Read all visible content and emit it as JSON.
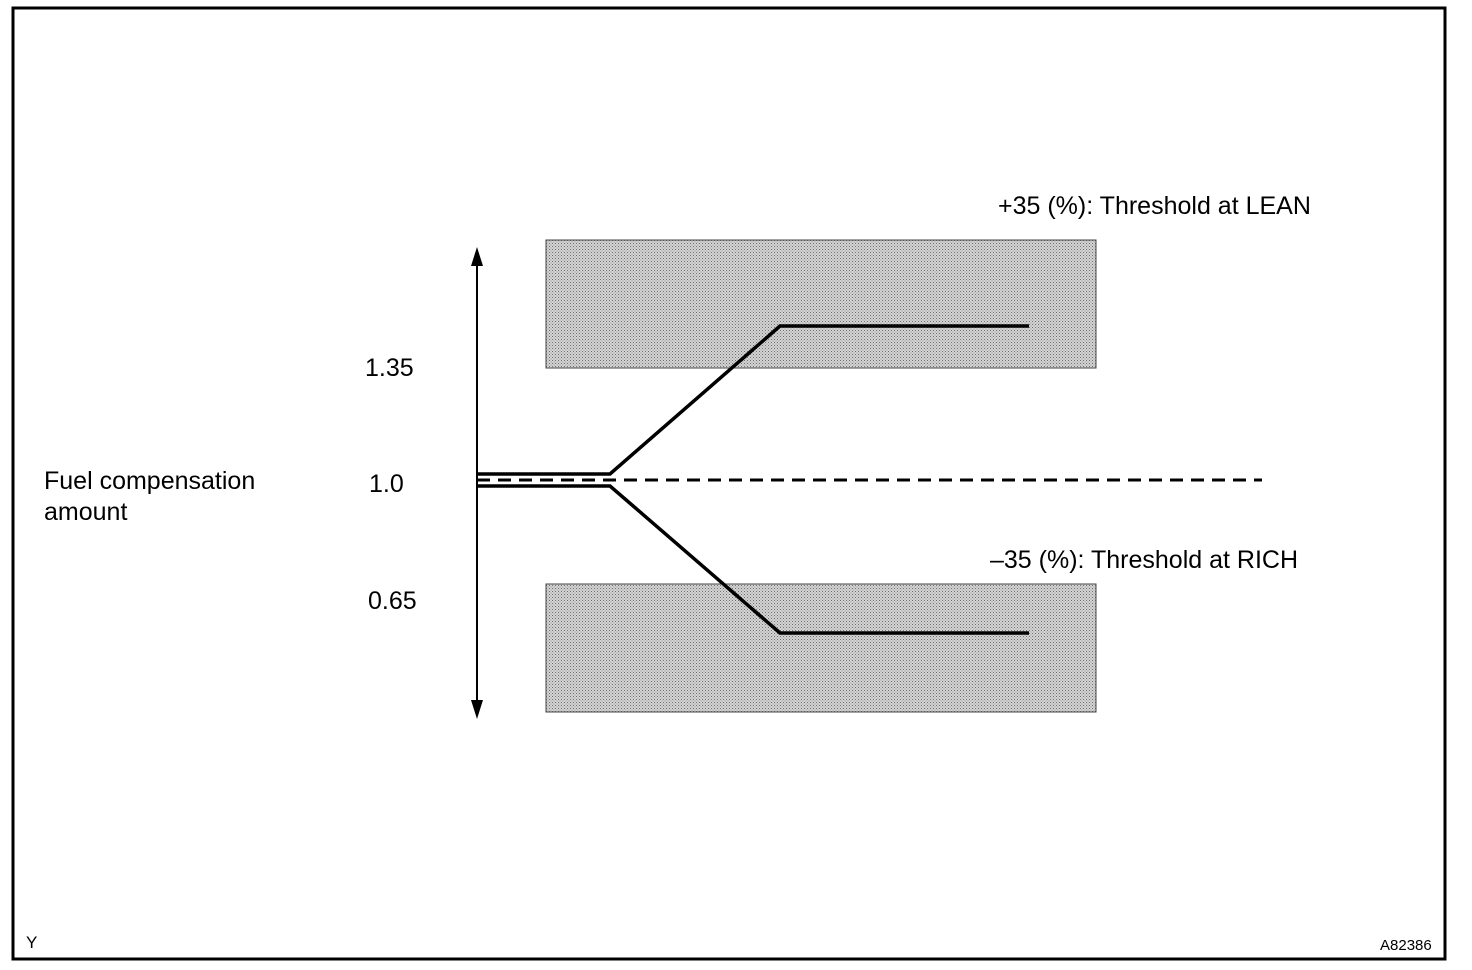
{
  "diagram": {
    "axis_label_line1": "Fuel compensation",
    "axis_label_line2": "amount",
    "tick_upper": "1.35",
    "tick_center": "1.0",
    "tick_lower": "0.65",
    "lean_threshold_label": "+35 (%): Threshold at LEAN",
    "rich_threshold_label": "–35 (%): Threshold at RICH",
    "corner_left_code": "Y",
    "figure_id": "A82386"
  },
  "colors": {
    "line": "#000000",
    "zone_fill_base": "#d0d0d0",
    "zone_dot": "#6e6e6e",
    "background": "#ffffff"
  }
}
